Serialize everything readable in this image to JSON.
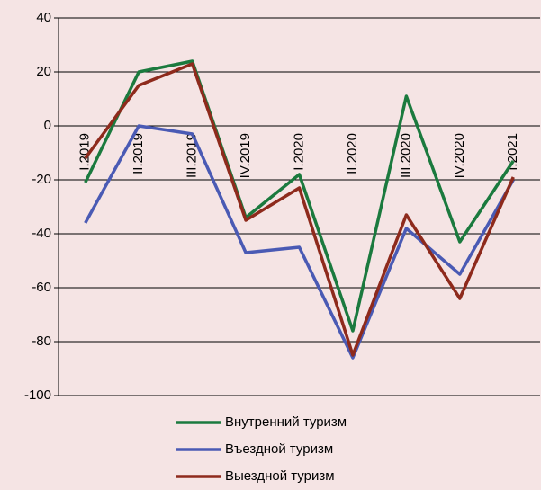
{
  "chart_data": {
    "type": "line",
    "categories": [
      "I.2019",
      "II.2019",
      "III.2019",
      "IV.2019",
      "I.2020",
      "II.2020",
      "III.2020",
      "IV.2020",
      "I.2021"
    ],
    "series": [
      {
        "name": "Внутренний туризм",
        "color": "#1b7a3e",
        "values": [
          -21,
          20,
          24,
          -34,
          -18,
          -76,
          11,
          -43,
          -13
        ]
      },
      {
        "name": "Въездной туризм",
        "color": "#4a5ab4",
        "values": [
          -36,
          0,
          -3,
          -47,
          -45,
          -86,
          -38,
          -55,
          -20
        ]
      },
      {
        "name": "Выездной туризм",
        "color": "#8e2a1c",
        "values": [
          -12,
          15,
          23,
          -35,
          -23,
          -85,
          -33,
          -64,
          -19
        ]
      }
    ],
    "ylim": [
      -100,
      40
    ],
    "yticks": [
      -100,
      -80,
      -60,
      -40,
      -20,
      0,
      20,
      40
    ],
    "grid": true
  }
}
